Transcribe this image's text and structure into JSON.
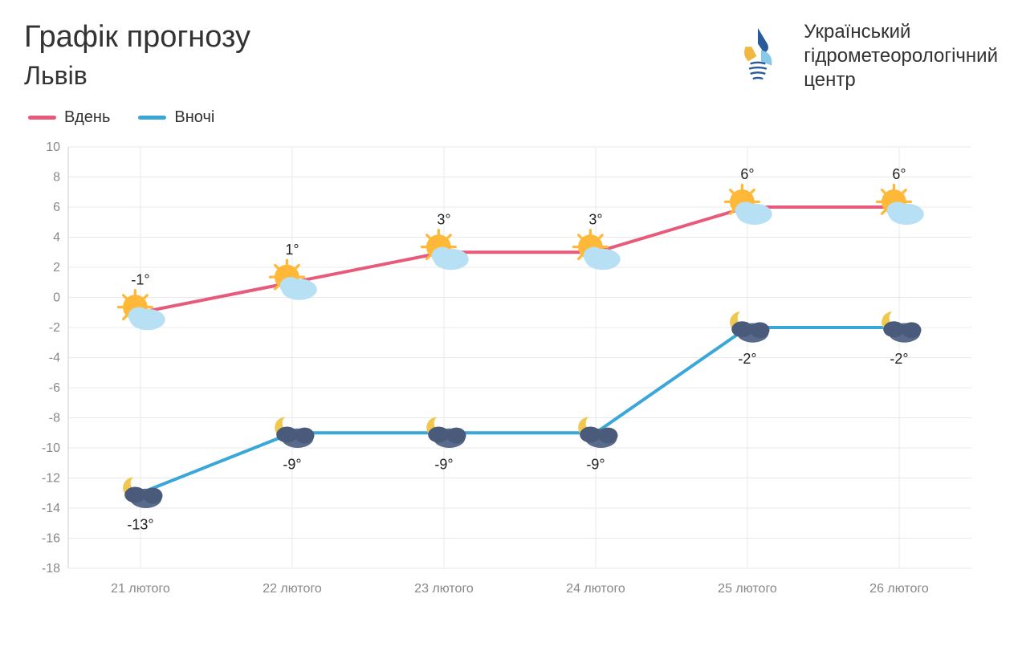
{
  "header": {
    "title": "Графік прогнозу",
    "city": "Львів",
    "org_line1": "Український",
    "org_line2": "гідрометеорологічний",
    "org_line3": "центр"
  },
  "legend": {
    "day_label": "Вдень",
    "night_label": "Вночі"
  },
  "chart": {
    "type": "line",
    "background_color": "#ffffff",
    "grid_color": "#e8e8e8",
    "axis_color": "#cccccc",
    "tick_font_size": 16,
    "tick_color": "#888888",
    "value_label_font_size": 18,
    "value_label_color": "#222222",
    "line_width": 4,
    "point_radius": 0,
    "y": {
      "min": -18,
      "max": 10,
      "step": 2
    },
    "x_labels": [
      "21 лютого",
      "22 лютого",
      "23 лютого",
      "24 лютого",
      "25 лютого",
      "26 лютого"
    ],
    "series": {
      "day": {
        "color": "#e85a7a",
        "values": [
          -1,
          1,
          3,
          3,
          6,
          6
        ],
        "labels": [
          "-1°",
          "1°",
          "3°",
          "3°",
          "6°",
          "6°"
        ],
        "icon": "sun-cloud"
      },
      "night": {
        "color": "#3ba7d9",
        "values": [
          -13,
          -9,
          -9,
          -9,
          -2,
          -2
        ],
        "labels": [
          "-13°",
          "-9°",
          "-9°",
          "-9°",
          "-2°",
          "-2°"
        ],
        "icon": "moon-cloud"
      }
    },
    "logo_colors": {
      "blue": "#2a5a9a",
      "yellow": "#f0b840",
      "lightblue": "#88c8e8"
    }
  }
}
